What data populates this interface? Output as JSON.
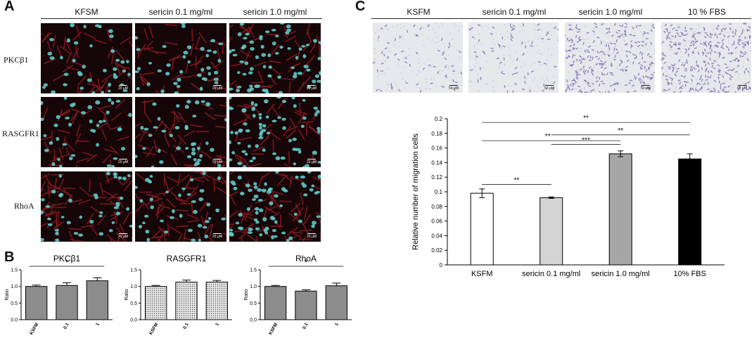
{
  "panel_a": {
    "letter": "A",
    "columns": [
      "KFSM",
      "sericin 0.1 mg/ml",
      "sericin 1.0 mg/ml"
    ],
    "rows": [
      "PKCβ1",
      "RASGFR1",
      "RhoA"
    ],
    "scale_label": "20 μM",
    "colors": {
      "cytoskeleton": "#8a1a20",
      "nuclei": "#5fc9c9",
      "background": "#160608"
    }
  },
  "panel_c_images": {
    "letter": "C",
    "columns": [
      "KSFM",
      "sericin 0.1 mg/ml",
      "sericin 1.0 mg/ml",
      "10 % FBS"
    ],
    "scale_label": "50 μM",
    "colors": {
      "stain": "#7b62b0",
      "background": "#e6e8ec"
    }
  },
  "chart_data": [
    {
      "type": "bar",
      "panel": "B",
      "title": "PKCβ1",
      "ylabel": "Ratio",
      "categories": [
        "KSFM",
        "0.1",
        "1"
      ],
      "values": [
        1.0,
        1.03,
        1.17
      ],
      "errors": [
        0.04,
        0.08,
        0.09
      ],
      "ylim": [
        0,
        1.5
      ],
      "yticks": [
        "0.0",
        "0.5",
        "1.0",
        "1.5"
      ],
      "significance": [
        {
          "from": 0,
          "to": 2,
          "label": "*"
        }
      ],
      "fill": "#8c8c8c",
      "pattern": "solid"
    },
    {
      "type": "bar",
      "title": "RASGFR1",
      "ylabel": "Ratio",
      "categories": [
        "KSFM",
        "0.1",
        "1"
      ],
      "values": [
        1.0,
        1.13,
        1.13
      ],
      "errors": [
        0.03,
        0.06,
        0.05
      ],
      "ylim": [
        0,
        1.5
      ],
      "yticks": [
        "0.0",
        "0.5",
        "1.0",
        "1.5"
      ],
      "significance": [],
      "fill": "#b9b9b9",
      "pattern": "dotted"
    },
    {
      "type": "bar",
      "title": "RhoA",
      "ylabel": "Ratio",
      "categories": [
        "KSFM",
        "0.1",
        "1"
      ],
      "values": [
        1.0,
        0.86,
        1.02
      ],
      "errors": [
        0.03,
        0.04,
        0.08
      ],
      "ylim": [
        0,
        1.5
      ],
      "yticks": [
        "0.0",
        "0.5",
        "1.0",
        "1.5"
      ],
      "significance": [
        {
          "from": 0,
          "to": 2,
          "label": "*"
        }
      ],
      "fill": "#8c8c8c",
      "pattern": "solid"
    },
    {
      "type": "bar",
      "panel": "C",
      "ylabel": "Relative number of migration cells",
      "categories": [
        "KSFM",
        "sericin 0.1 mg/ml",
        "sericin 1.0 mg/ml",
        "10% FBS"
      ],
      "values": [
        0.098,
        0.092,
        0.152,
        0.145
      ],
      "errors": [
        0.006,
        0.001,
        0.004,
        0.007
      ],
      "fills": [
        "#ffffff",
        "#d4d4d4",
        "#a6a6a6",
        "#000000"
      ],
      "ylim": [
        0,
        0.2
      ],
      "yticks": [
        "0",
        "0.02",
        "0.04",
        "0.06",
        "0.08",
        "0.1",
        "0.12",
        "0.14",
        "0.16",
        "0.18",
        "0.2"
      ],
      "significance": [
        {
          "from": 0,
          "to": 1,
          "label": "**"
        },
        {
          "from": 1,
          "to": 2,
          "label": "***"
        },
        {
          "from": 0,
          "to": 2,
          "label": "**"
        },
        {
          "from": 1,
          "to": 3,
          "label": "**"
        },
        {
          "from": 0,
          "to": 3,
          "label": "**"
        }
      ]
    }
  ]
}
